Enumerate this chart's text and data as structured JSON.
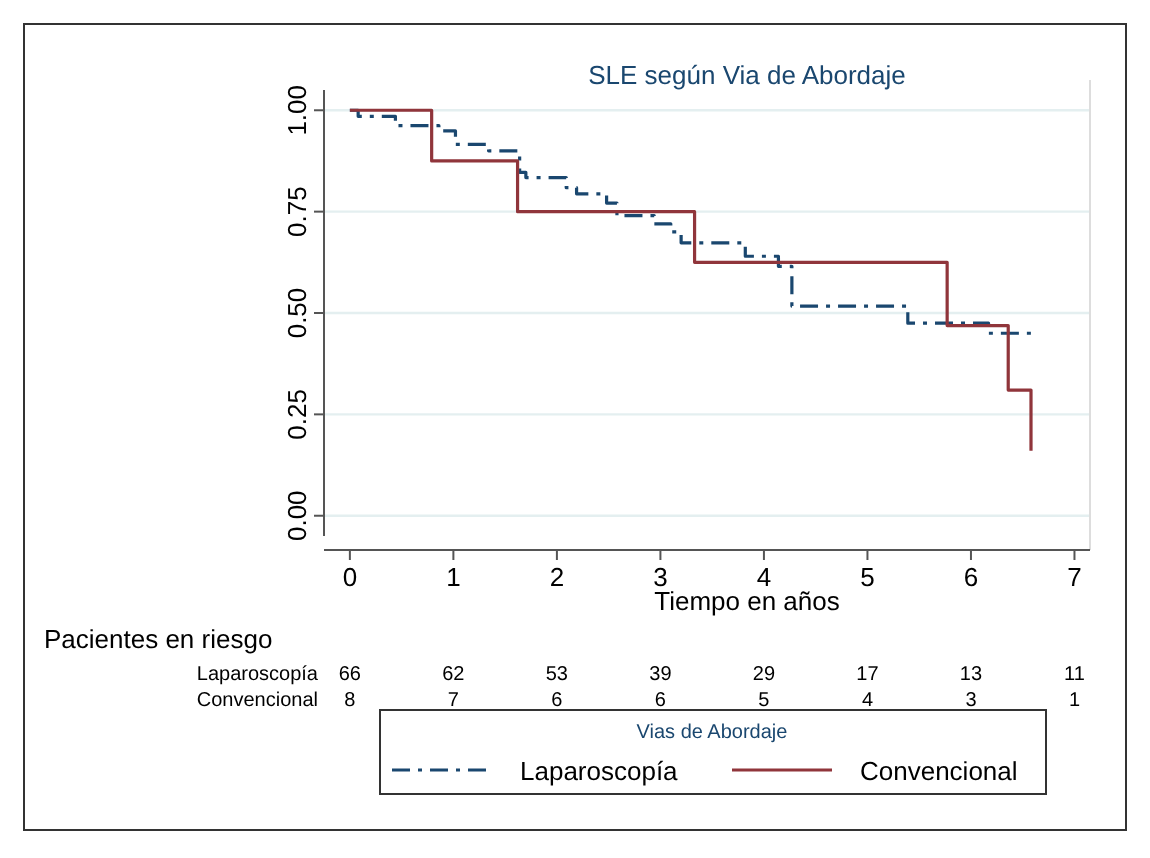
{
  "chart_data": {
    "type": "step",
    "title": "SLE según Via de Abordaje",
    "xlabel": "Tiempo en años",
    "legend_title": "Vias de Abordaje",
    "xlim": [
      -0.25,
      7.15
    ],
    "ylim": [
      -0.05,
      1.05
    ],
    "xticks": [
      0,
      1,
      2,
      3,
      4,
      5,
      6,
      7
    ],
    "yticks": [
      {
        "value": 0,
        "label": "0.00"
      },
      {
        "value": 0.25,
        "label": "0.25"
      },
      {
        "value": 0.5,
        "label": "0.50"
      },
      {
        "value": 0.75,
        "label": "0.75"
      },
      {
        "value": 1,
        "label": "1.00"
      }
    ],
    "grid": "y",
    "legend": "bottom",
    "series": [
      {
        "name": "Laparoscopía",
        "color": "#1a476f",
        "line_style": "dashed",
        "x": [
          0,
          0.08,
          0.44,
          0.86,
          1.02,
          1.34,
          1.64,
          1.7,
          2.09,
          2.19,
          2.48,
          2.58,
          2.94,
          3.1,
          3.2,
          3.82,
          4.14,
          4.27,
          5.39,
          6.17,
          6.59
        ],
        "values": [
          1,
          0.985,
          0.962,
          0.949,
          0.916,
          0.9,
          0.847,
          0.834,
          0.809,
          0.794,
          0.771,
          0.74,
          0.72,
          0.7,
          0.673,
          0.64,
          0.615,
          0.517,
          0.475,
          0.45,
          0.45
        ]
      },
      {
        "name": "Convencional",
        "color": "#90353b",
        "line_style": "solid",
        "x": [
          0,
          0.79,
          1.62,
          3.33,
          5.77,
          6.36,
          6.58
        ],
        "values": [
          1,
          0.875,
          0.75,
          0.625,
          0.469,
          0.31,
          0.16
        ]
      }
    ],
    "annotations": [
      "Pacientes en riesgo",
      "Laparoscopía",
      "66",
      "62",
      "53",
      "39",
      "29",
      "17",
      "13",
      "11",
      "Convencional",
      "8",
      "7",
      "6",
      "6",
      "5",
      "4",
      "3",
      "1"
    ]
  }
}
